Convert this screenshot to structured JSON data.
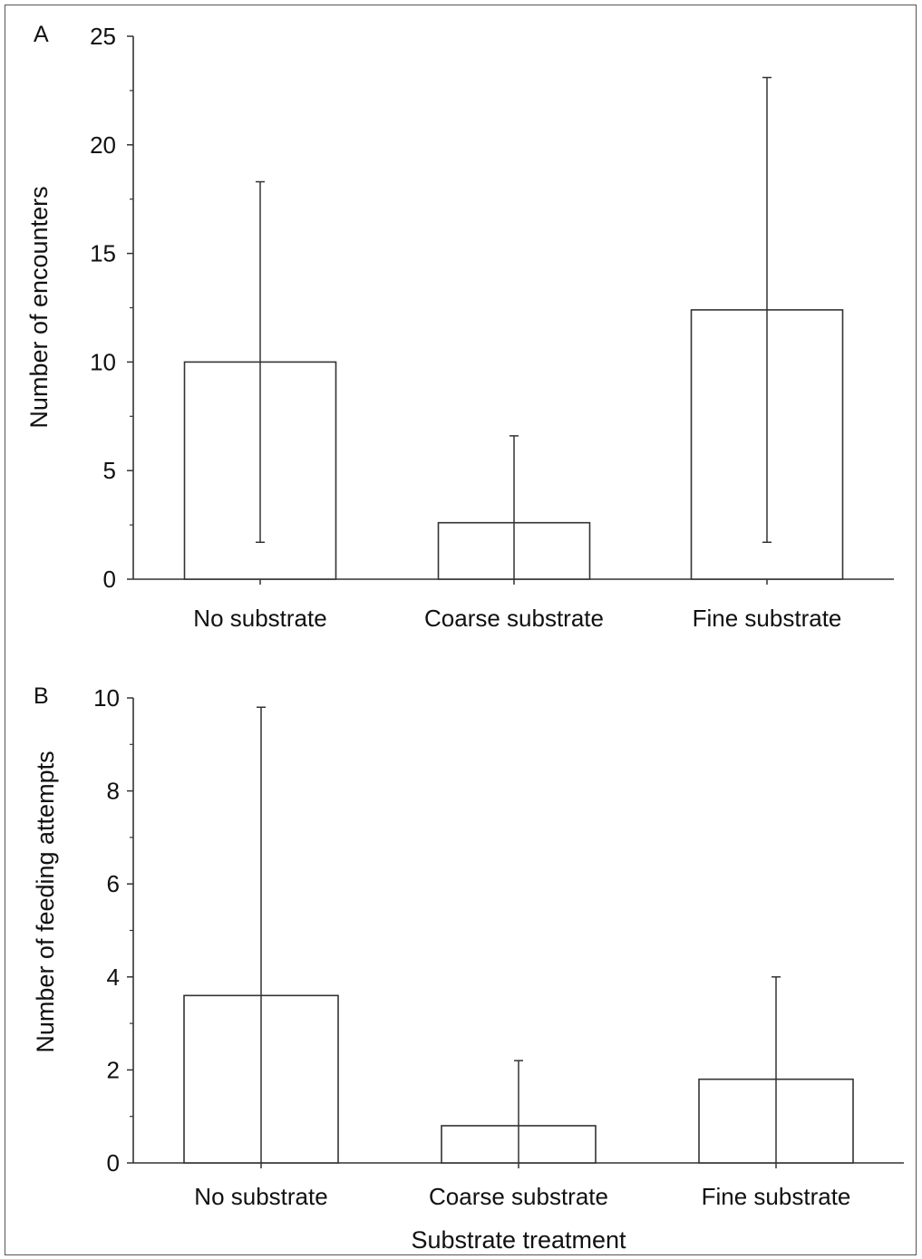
{
  "chart_data": [
    {
      "type": "bar",
      "panel_label": "A",
      "categories": [
        "No substrate",
        "Coarse substrate",
        "Fine substrate"
      ],
      "values": [
        10.0,
        2.6,
        12.4
      ],
      "error_upper": [
        18.3,
        6.6,
        23.1
      ],
      "error_lower": [
        1.7,
        0,
        1.7
      ],
      "xlabel": "",
      "ylabel": "Number of encounters",
      "ylim": [
        0,
        25
      ],
      "yticks": [
        0,
        5,
        10,
        15,
        20,
        25
      ],
      "grid": false
    },
    {
      "type": "bar",
      "panel_label": "B",
      "categories": [
        "No substrate",
        "Coarse substrate",
        "Fine substrate"
      ],
      "values": [
        3.6,
        0.8,
        1.8
      ],
      "error_upper": [
        9.8,
        2.2,
        4.0
      ],
      "error_lower": [
        0,
        0,
        0
      ],
      "xlabel": "Substrate treatment",
      "ylabel": "Number of feeding attempts",
      "ylim": [
        0,
        10
      ],
      "yticks": [
        0,
        2,
        4,
        6,
        8,
        10
      ],
      "grid": false
    }
  ]
}
